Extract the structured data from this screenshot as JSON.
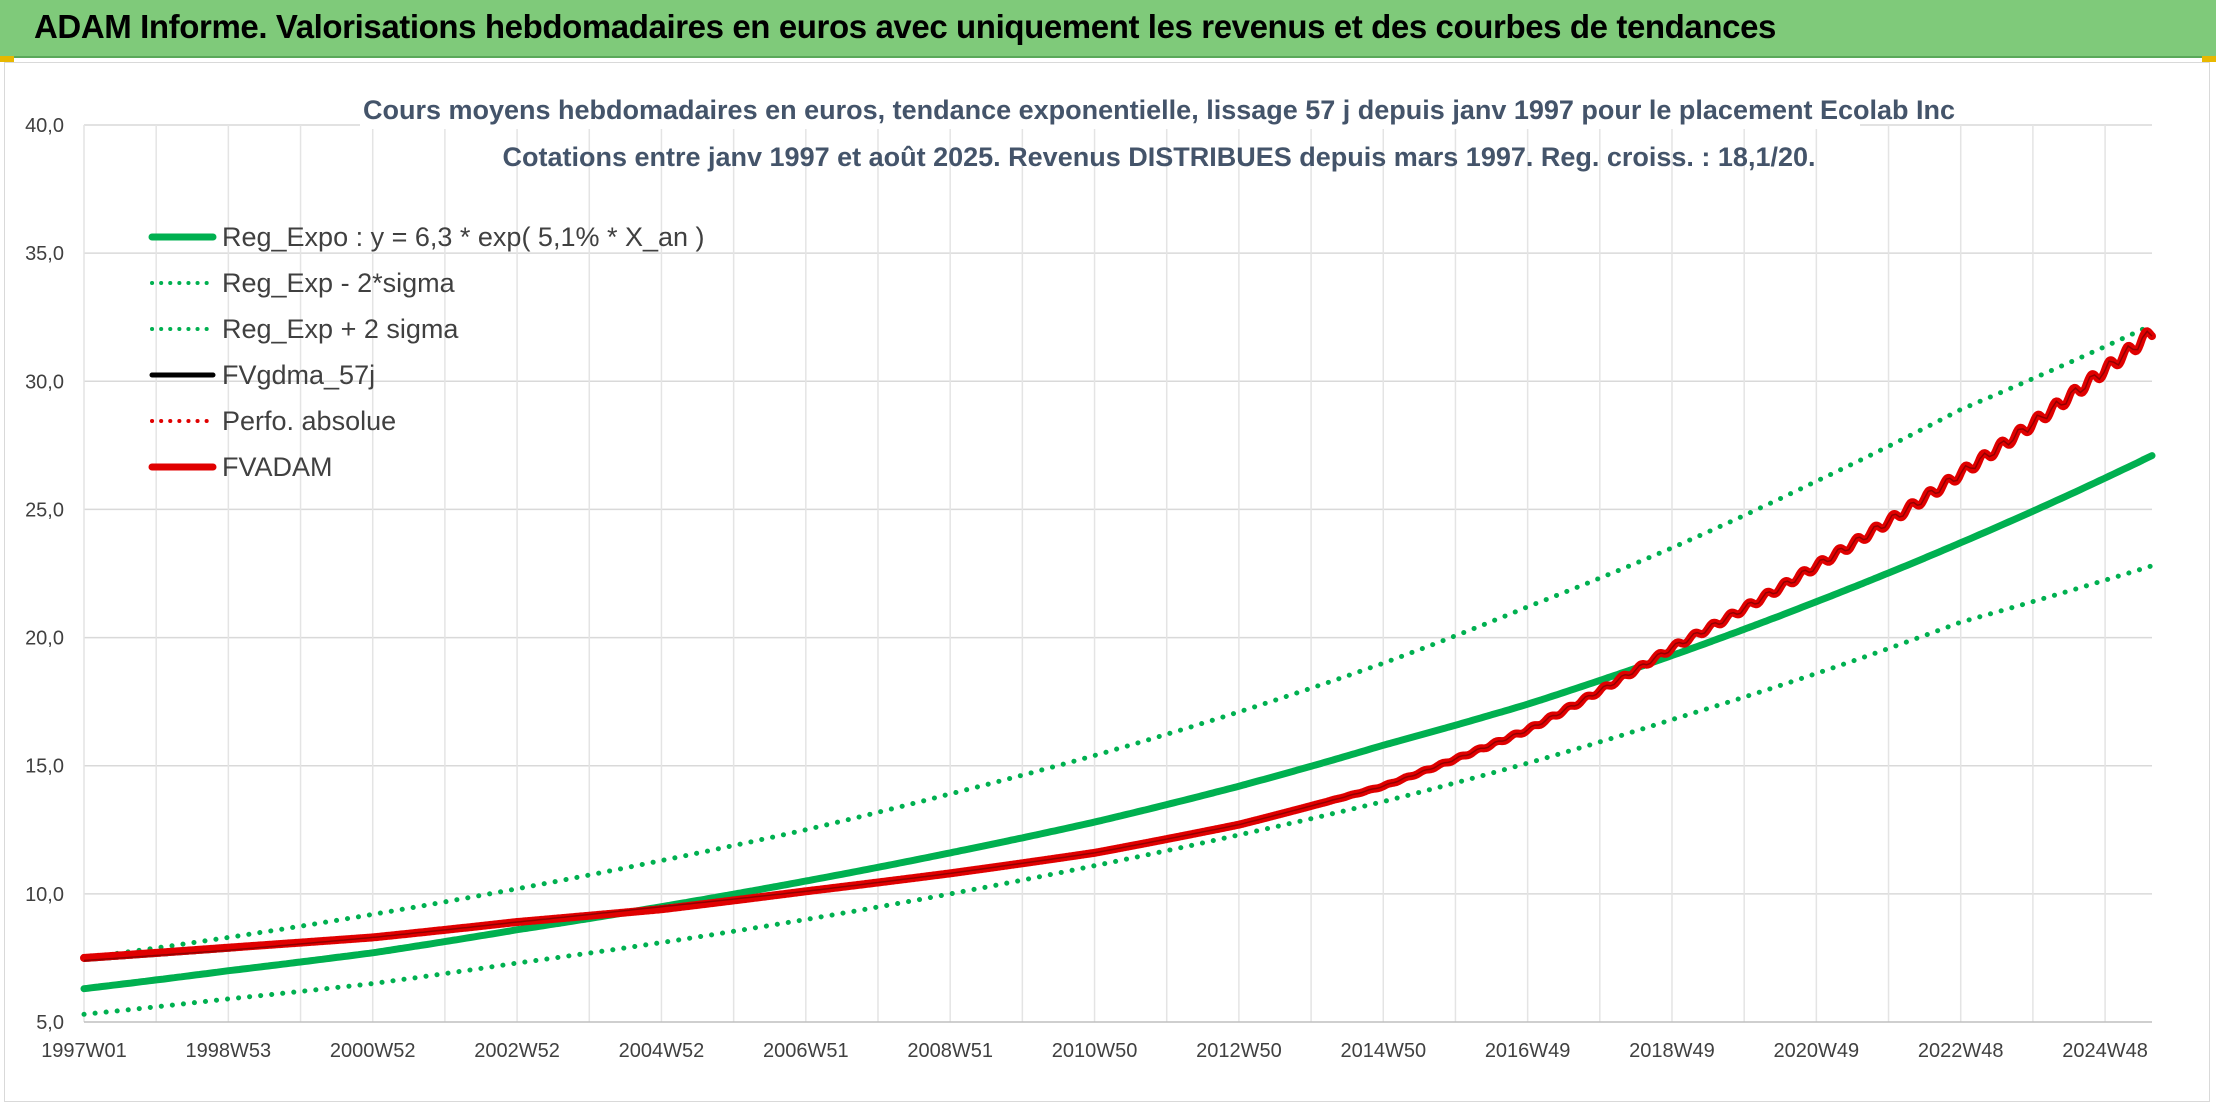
{
  "banner": {
    "title": "ADAM Informe. Valorisations hebdomadaires en euros avec uniquement les revenus et des courbes de tendances"
  },
  "colors": {
    "banner_bg": "#7fca7a",
    "green": "#00b050",
    "red": "#e00000",
    "black": "#000000",
    "title_text": "#44546a"
  },
  "chart_data": {
    "type": "line",
    "title": "Cours moyens hebdomadaires en euros, tendance exponentielle, lissage 57 j depuis janv 1997 pour le placement Ecolab Inc",
    "subtitle": "Cotations entre janv 1997 et août 2025. Revenus DISTRIBUES depuis mars 1997. Reg. croiss. : 18,1/20.",
    "xlabel": "",
    "ylabel": "",
    "ylim": [
      5,
      40
    ],
    "y_ticks": [
      "40,0",
      "35,0",
      "30,0",
      "25,0",
      "20,0",
      "15,0",
      "10,0",
      "5,0"
    ],
    "y_tick_values": [
      40,
      35,
      30,
      25,
      20,
      15,
      10,
      5
    ],
    "x_ticks": [
      "1997W01",
      "1998W53",
      "2000W52",
      "2002W52",
      "2004W52",
      "2006W51",
      "2008W51",
      "2010W50",
      "2012W50",
      "2014W50",
      "2016W49",
      "2018W49",
      "2020W49",
      "2022W48",
      "2024W48"
    ],
    "x_tick_years": [
      1997.0,
      1999.0,
      2001.0,
      2003.0,
      2005.0,
      2007.0,
      2009.0,
      2011.0,
      2013.0,
      2015.0,
      2017.0,
      2019.0,
      2021.0,
      2023.0,
      2025.0
    ],
    "x_range": [
      1997.0,
      2025.65
    ],
    "grid": true,
    "legend_position": "top-left",
    "series": [
      {
        "name": "Reg_Expo : y = 6,3 * exp( 5,1% *  X_an )",
        "style": "solid",
        "color": "#00b050",
        "x": [
          1997,
          1999,
          2001,
          2003,
          2005,
          2007,
          2009,
          2011,
          2013,
          2015,
          2017,
          2019,
          2021,
          2023,
          2025.65
        ],
        "values": [
          6.3,
          7.0,
          7.7,
          8.6,
          9.5,
          10.5,
          11.6,
          12.8,
          14.2,
          15.8,
          17.4,
          19.3,
          21.4,
          23.7,
          27.1
        ]
      },
      {
        "name": "Reg_Exp - 2*sigma",
        "style": "dotted",
        "color": "#00b050",
        "x": [
          1997,
          1999,
          2001,
          2003,
          2005,
          2007,
          2009,
          2011,
          2013,
          2015,
          2017,
          2019,
          2021,
          2023,
          2025.65
        ],
        "values": [
          5.3,
          5.9,
          6.5,
          7.3,
          8.1,
          9.0,
          10.0,
          11.1,
          12.3,
          13.6,
          15.1,
          16.8,
          18.6,
          20.6,
          22.8
        ]
      },
      {
        "name": "Reg_Exp + 2 sigma",
        "style": "dotted",
        "color": "#00b050",
        "x": [
          1997,
          1999,
          2001,
          2003,
          2005,
          2007,
          2009,
          2011,
          2013,
          2015,
          2017,
          2019,
          2021,
          2023,
          2025.65
        ],
        "values": [
          7.5,
          8.3,
          9.2,
          10.2,
          11.3,
          12.5,
          13.9,
          15.4,
          17.1,
          19.0,
          21.2,
          23.5,
          26.1,
          28.9,
          32.2
        ]
      },
      {
        "name": "FVgdma_57j",
        "style": "solid",
        "color": "#000000",
        "x": [
          1997,
          1999,
          2001,
          2003,
          2005,
          2007,
          2009,
          2011,
          2013,
          2015,
          2017,
          2019,
          2021,
          2023,
          2025.65
        ],
        "values": [
          7.4,
          7.8,
          8.3,
          8.9,
          9.5,
          10.1,
          10.8,
          11.6,
          12.7,
          14.2,
          16.4,
          19.6,
          22.8,
          26.4,
          31.9
        ]
      },
      {
        "name": "Perfo. absolue",
        "style": "dotted",
        "color": "#e00000",
        "x": [],
        "values": []
      },
      {
        "name": "FVADAM",
        "style": "solid",
        "color": "#e00000",
        "x": [
          1997,
          1999,
          2001,
          2003,
          2005,
          2007,
          2009,
          2011,
          2013,
          2015,
          2017,
          2019,
          2021,
          2023,
          2025.65
        ],
        "values": [
          7.5,
          7.9,
          8.3,
          8.9,
          9.4,
          10.1,
          10.8,
          11.6,
          12.7,
          14.2,
          16.4,
          19.6,
          22.8,
          26.4,
          31.9
        ]
      }
    ]
  }
}
